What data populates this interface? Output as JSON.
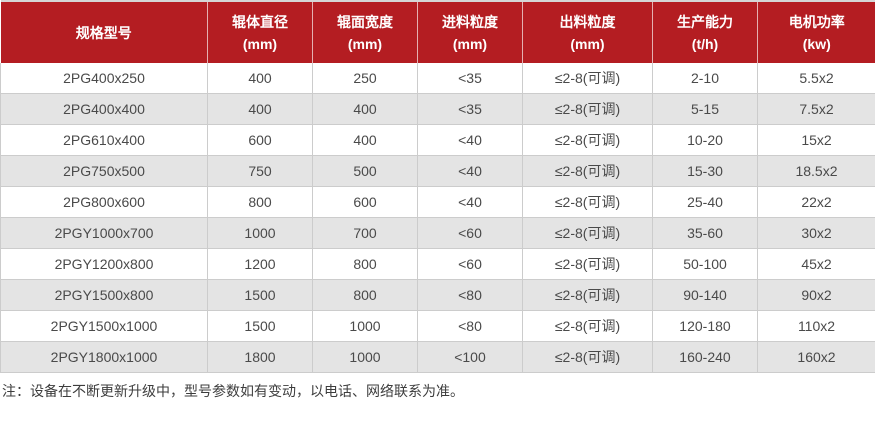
{
  "colors": {
    "header_bg": "#b41d22",
    "header_text": "#ffffff",
    "row_alt_bg": "#e4e4e4",
    "grid_border": "#cccccc",
    "body_text": "#4a4a4a"
  },
  "table": {
    "headers": [
      {
        "title": "规格型号",
        "unit": ""
      },
      {
        "title": "辊体直径",
        "unit": "(mm)"
      },
      {
        "title": "辊面宽度",
        "unit": "(mm)"
      },
      {
        "title": "进料粒度",
        "unit": "(mm)"
      },
      {
        "title": "出料粒度",
        "unit": "(mm)"
      },
      {
        "title": "生产能力",
        "unit": "(t/h)"
      },
      {
        "title": "电机功率",
        "unit": "(kw)"
      }
    ],
    "rows": [
      [
        "2PG400x250",
        "400",
        "250",
        "<35",
        "≤2-8(可调)",
        "2-10",
        "5.5x2"
      ],
      [
        "2PG400x400",
        "400",
        "400",
        "<35",
        "≤2-8(可调)",
        "5-15",
        "7.5x2"
      ],
      [
        "2PG610x400",
        "600",
        "400",
        "<40",
        "≤2-8(可调)",
        "10-20",
        "15x2"
      ],
      [
        "2PG750x500",
        "750",
        "500",
        "<40",
        "≤2-8(可调)",
        "15-30",
        "18.5x2"
      ],
      [
        "2PG800x600",
        "800",
        "600",
        "<40",
        "≤2-8(可调)",
        "25-40",
        "22x2"
      ],
      [
        "2PGY1000x700",
        "1000",
        "700",
        "<60",
        "≤2-8(可调)",
        "35-60",
        "30x2"
      ],
      [
        "2PGY1200x800",
        "1200",
        "800",
        "<60",
        "≤2-8(可调)",
        "50-100",
        "45x2"
      ],
      [
        "2PGY1500x800",
        "1500",
        "800",
        "<80",
        "≤2-8(可调)",
        "90-140",
        "90x2"
      ],
      [
        "2PGY1500x1000",
        "1500",
        "1000",
        "<80",
        "≤2-8(可调)",
        "120-180",
        "110x2"
      ],
      [
        "2PGY1800x1000",
        "1800",
        "1000",
        "<100",
        "≤2-8(可调)",
        "160-240",
        "160x2"
      ]
    ]
  },
  "note": "注：设备在不断更新升级中，型号参数如有变动，以电话、网络联系为准。"
}
